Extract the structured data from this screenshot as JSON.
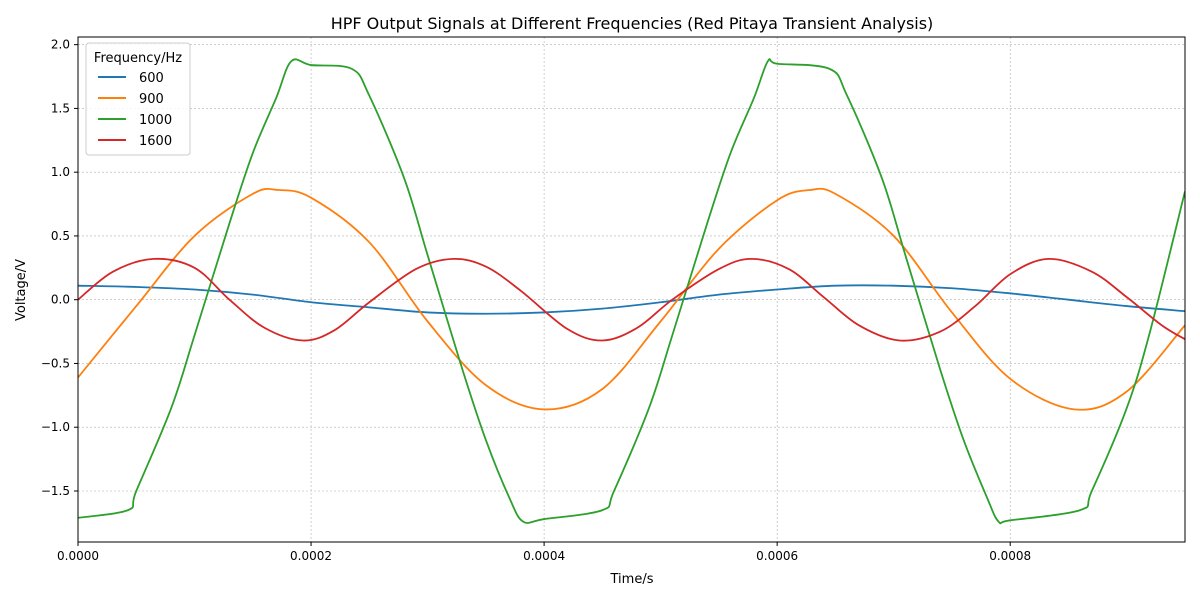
{
  "chart_data": {
    "type": "line",
    "title": "HPF Output Signals at Different Frequencies (Red Pitaya Transient Analysis)",
    "xlabel": "Time/s",
    "ylabel": "Voltage/V",
    "xlim": [
      0,
      0.00095
    ],
    "ylim": [
      -1.9,
      2.06
    ],
    "xticks": [
      0,
      0.0002,
      0.0004,
      0.0006,
      0.0008
    ],
    "xtick_labels": [
      "0.0000",
      "0.0002",
      "0.0004",
      "0.0006",
      "0.0008"
    ],
    "yticks": [
      -1.5,
      -1.0,
      -0.5,
      0.0,
      0.5,
      1.0,
      1.5,
      2.0
    ],
    "ytick_labels": [
      "−1.5",
      "−1.0",
      "−0.5",
      "0.0",
      "0.5",
      "1.0",
      "1.5",
      "2.0"
    ],
    "grid": true,
    "legend": {
      "title": "Frequency/Hz",
      "placement": "top-left"
    },
    "series": [
      {
        "name": "600",
        "color": "#1f77b4",
        "x": [
          0,
          5e-05,
          0.0001,
          0.00015,
          0.0002,
          0.00025,
          0.0003,
          0.00035,
          0.0004,
          0.00045,
          0.0005,
          0.00055,
          0.0006,
          0.00065,
          0.0007,
          0.00075,
          0.0008,
          0.00085,
          0.0009,
          0.00095
        ],
        "y": [
          0.11,
          0.1,
          0.08,
          0.04,
          -0.02,
          -0.06,
          -0.1,
          -0.11,
          -0.1,
          -0.07,
          -0.02,
          0.04,
          0.08,
          0.11,
          0.11,
          0.09,
          0.05,
          0.0,
          -0.05,
          -0.09
        ]
      },
      {
        "name": "900",
        "color": "#ff7f0e",
        "x": [
          0,
          5e-05,
          0.0001,
          0.00015,
          0.000172,
          0.0002,
          0.00025,
          0.0003,
          0.00035,
          0.0004,
          0.00045,
          0.0005,
          0.00055,
          0.0006,
          0.000628,
          0.00065,
          0.0007,
          0.00075,
          0.0008,
          0.000855,
          0.0009,
          0.00095
        ],
        "y": [
          -0.61,
          -0.05,
          0.5,
          0.83,
          0.86,
          0.8,
          0.45,
          -0.17,
          -0.67,
          -0.86,
          -0.7,
          -0.17,
          0.4,
          0.78,
          0.86,
          0.83,
          0.5,
          -0.1,
          -0.62,
          -0.86,
          -0.72,
          -0.2
        ]
      },
      {
        "name": "1000",
        "color": "#2ca02c",
        "x": [
          0,
          4.3e-05,
          5e-05,
          8e-05,
          0.0001,
          0.00013,
          0.00015,
          0.00017,
          0.000183,
          0.0002,
          0.000235,
          0.00025,
          0.00028,
          0.0003,
          0.00033,
          0.00035,
          0.00037,
          0.000382,
          0.0004,
          0.00045,
          0.00046,
          0.00049,
          0.00051,
          0.00054,
          0.00056,
          0.00058,
          0.000592,
          0.0006,
          0.000645,
          0.00066,
          0.00069,
          0.00071,
          0.00074,
          0.00076,
          0.00078,
          0.00079,
          0.0008,
          0.00086,
          0.00087,
          0.0009,
          0.00092,
          0.00095
        ],
        "y": [
          -1.71,
          -1.65,
          -1.5,
          -0.85,
          -0.28,
          0.6,
          1.15,
          1.58,
          1.87,
          1.84,
          1.81,
          1.6,
          0.95,
          0.35,
          -0.55,
          -1.1,
          -1.55,
          -1.74,
          -1.72,
          -1.65,
          -1.5,
          -0.85,
          -0.28,
          0.6,
          1.15,
          1.58,
          1.87,
          1.85,
          1.81,
          1.6,
          0.95,
          0.35,
          -0.55,
          -1.1,
          -1.55,
          -1.74,
          -1.73,
          -1.65,
          -1.5,
          -0.85,
          -0.25,
          0.85
        ]
      },
      {
        "name": "1600",
        "color": "#d62728",
        "x": [
          0,
          3e-05,
          6.5e-05,
          0.0001,
          0.00013,
          0.00016,
          0.000193,
          0.00022,
          0.00025,
          0.00029,
          0.000322,
          0.00035,
          0.00038,
          0.00042,
          0.00045,
          0.00048,
          0.00051,
          0.00055,
          0.000578,
          0.00061,
          0.00064,
          0.00067,
          0.000705,
          0.00074,
          0.00077,
          0.0008,
          0.000833,
          0.00087,
          0.0009,
          0.00093,
          0.00095
        ],
        "y": [
          0.0,
          0.22,
          0.32,
          0.25,
          0.0,
          -0.22,
          -0.32,
          -0.24,
          -0.02,
          0.24,
          0.32,
          0.26,
          0.07,
          -0.23,
          -0.32,
          -0.22,
          0.0,
          0.24,
          0.32,
          0.24,
          0.02,
          -0.2,
          -0.32,
          -0.25,
          -0.05,
          0.2,
          0.32,
          0.22,
          0.02,
          -0.2,
          -0.31
        ]
      }
    ]
  }
}
